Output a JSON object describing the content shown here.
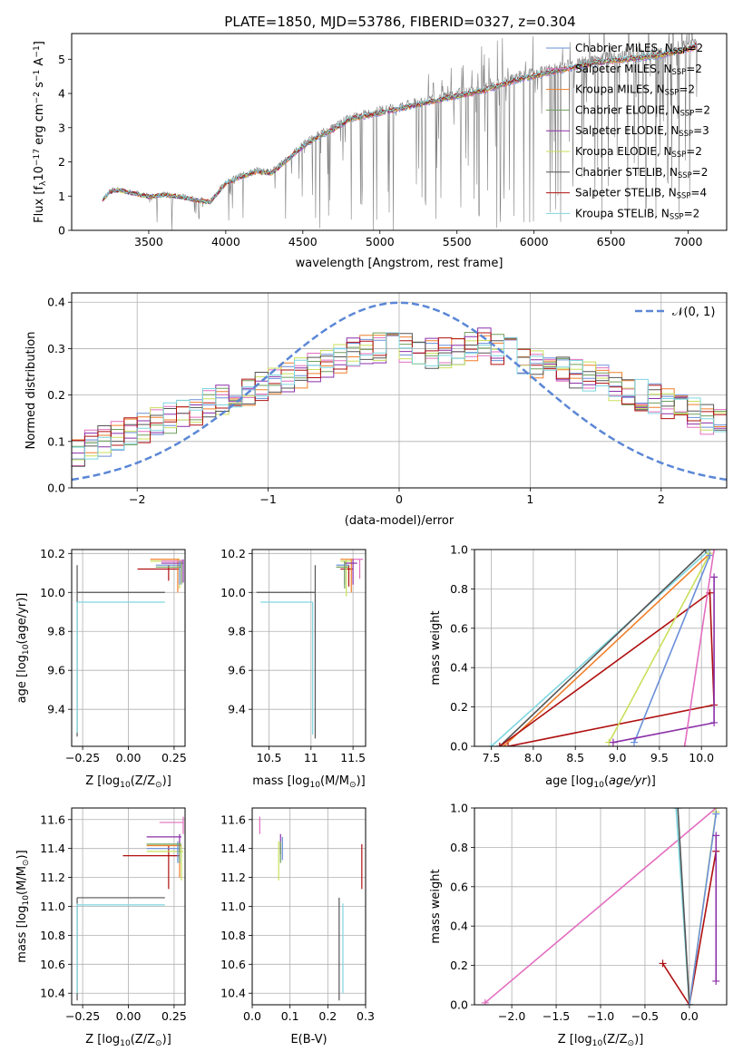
{
  "title": "PLATE=1850, MJD=53786, FIBERID=0327, z=0.304",
  "colors": {
    "chabrier_miles": "#6a8fd8",
    "salpeter_miles": "#e36ec0",
    "kroupa_miles": "#f07f2a",
    "chabrier_elodie": "#6f9f5a",
    "salpeter_elodie": "#8b2fa8",
    "kroupa_elodie": "#c8e05a",
    "chabrier_stelib": "#555555",
    "salpeter_stelib": "#b01010",
    "kroupa_stelib": "#7fd6e0",
    "data": "#808080",
    "gaussian": "#5b87d6",
    "grid": "#b0b0b0"
  },
  "chart_data": [
    {
      "type": "line",
      "panel": "spectrum",
      "title": "PLATE=1850, MJD=53786, FIBERID=0327, z=0.304",
      "xlabel": "wavelength [Angstrom, rest frame]",
      "ylabel": "Flux [f",
      "ylabel_sub": "λ",
      "ylabel_rest": "10",
      "ylabel_exp": "−17",
      "ylabel_unit": " erg cm",
      "ylabel_unit_exp1": "−2",
      "ylabel_s": " s",
      "ylabel_s_exp": "−1",
      "ylabel_A": " A",
      "ylabel_A_exp": "−1",
      "ylabel_close": "]",
      "xlim": [
        3000,
        7250
      ],
      "ylim": [
        0,
        5.75
      ],
      "xticks": [
        3500,
        4000,
        4500,
        5000,
        5500,
        6000,
        6500,
        7000
      ],
      "yticks": [
        0,
        1,
        2,
        3,
        4,
        5
      ],
      "grid": false,
      "legend_position": "top-right",
      "legend": [
        {
          "label": "Chabrier MILES, N",
          "sub": "SSP",
          "val": "=2"
        },
        {
          "label": "Salpeter MILES, N",
          "sub": "SSP",
          "val": "=2"
        },
        {
          "label": "Kroupa MILES, N",
          "sub": "SSP",
          "val": "=2"
        },
        {
          "label": "Chabrier ELODIE, N",
          "sub": "SSP",
          "val": "=2"
        },
        {
          "label": "Salpeter ELODIE, N",
          "sub": "SSP",
          "val": "=3"
        },
        {
          "label": "Kroupa ELODIE, N",
          "sub": "SSP",
          "val": "=2"
        },
        {
          "label": "Chabrier STELIB, N",
          "sub": "SSP",
          "val": "=2"
        },
        {
          "label": "Salpeter STELIB, N",
          "sub": "SSP",
          "val": "=4"
        },
        {
          "label": "Kroupa STELIB, N",
          "sub": "SSP",
          "val": "=2"
        }
      ],
      "continuum": [
        [
          3200,
          0.9
        ],
        [
          3250,
          1.15
        ],
        [
          3300,
          1.2
        ],
        [
          3400,
          1.1
        ],
        [
          3500,
          1.0
        ],
        [
          3600,
          1.05
        ],
        [
          3700,
          1.0
        ],
        [
          3800,
          0.9
        ],
        [
          3900,
          0.85
        ],
        [
          4000,
          1.4
        ],
        [
          4100,
          1.6
        ],
        [
          4200,
          1.75
        ],
        [
          4300,
          1.7
        ],
        [
          4400,
          2.1
        ],
        [
          4500,
          2.5
        ],
        [
          4600,
          2.8
        ],
        [
          4700,
          3.0
        ],
        [
          4800,
          3.3
        ],
        [
          4900,
          3.4
        ],
        [
          5000,
          3.5
        ],
        [
          5100,
          3.6
        ],
        [
          5200,
          3.7
        ],
        [
          5300,
          3.8
        ],
        [
          5400,
          3.9
        ],
        [
          5500,
          4.0
        ],
        [
          5600,
          4.1
        ],
        [
          5700,
          4.2
        ],
        [
          5800,
          4.35
        ],
        [
          5900,
          4.5
        ],
        [
          6000,
          4.6
        ],
        [
          6100,
          4.7
        ],
        [
          6200,
          4.8
        ],
        [
          6300,
          4.9
        ],
        [
          6400,
          5.0
        ],
        [
          6500,
          5.05
        ],
        [
          6600,
          5.1
        ],
        [
          6700,
          5.15
        ],
        [
          6800,
          5.2
        ],
        [
          6900,
          5.3
        ],
        [
          7000,
          5.4
        ],
        [
          7060,
          5.5
        ]
      ]
    },
    {
      "type": "area",
      "panel": "residuals",
      "xlabel": "(data-model)/error",
      "ylabel": "Normed distribution",
      "xlim": [
        -2.5,
        2.5
      ],
      "ylim": [
        0,
        0.42
      ],
      "xticks": [
        -2,
        -1,
        0,
        1,
        2
      ],
      "yticks": [
        0.0,
        0.1,
        0.2,
        0.3,
        0.4
      ],
      "grid": true,
      "legend_position": "top-right",
      "legend": [
        {
          "label": "𝒩(0, 1)"
        }
      ],
      "bin_width": 0.1,
      "base_series": [
        0.05,
        0.06,
        0.07,
        0.08,
        0.09,
        0.1,
        0.11,
        0.12,
        0.13,
        0.14,
        0.15,
        0.16,
        0.17,
        0.18,
        0.19,
        0.2,
        0.21,
        0.22,
        0.23,
        0.24,
        0.25,
        0.26,
        0.27,
        0.28,
        0.29,
        0.3,
        0.3,
        0.31,
        0.3,
        0.3,
        0.29,
        0.29,
        0.3,
        0.3,
        0.31,
        0.3,
        0.29,
        0.28,
        0.27,
        0.26,
        0.26,
        0.25,
        0.24,
        0.23,
        0.22,
        0.21,
        0.2,
        0.19,
        0.18,
        0.17,
        0.16,
        0.15,
        0.14,
        0.13,
        0.12,
        0.11,
        0.1,
        0.1,
        0.09,
        0.08
      ]
    },
    {
      "type": "scatter",
      "panel": "age_vs_Z",
      "xlabel": "Z [log",
      "xlabel_sub": "10",
      "xlabel_rest": "(Z/Z",
      "xlabel_sub2": "⊙",
      "xlabel_close": ")]",
      "ylabel": "age  [log",
      "ylabel_sub": "10",
      "ylabel_rest": "(age/yr)]",
      "xlim": [
        -0.31,
        0.31
      ],
      "ylim": [
        9.21,
        10.22
      ],
      "xticks": [
        -0.25,
        0.0,
        0.25
      ],
      "xticklabels": [
        "−0.25",
        "0.00",
        "0.25"
      ],
      "yticks": [
        9.4,
        9.6,
        9.8,
        10.0,
        10.2
      ],
      "grid": true
    },
    {
      "type": "scatter",
      "panel": "age_vs_mass",
      "xlabel": "mass [log",
      "xlabel_sub": "10",
      "xlabel_rest": "(M/M",
      "xlabel_sub2": "⊙",
      "xlabel_close": ")]",
      "xlim": [
        10.3,
        11.65
      ],
      "ylim": [
        9.21,
        10.22
      ],
      "xticks": [
        10.5,
        11.0,
        11.5
      ],
      "yticks": [
        9.4,
        9.6,
        9.8,
        10.0,
        10.2
      ],
      "grid": true
    },
    {
      "type": "line",
      "panel": "mass_weight_vs_age",
      "xlabel": "age  [log",
      "xlabel_sub": "10",
      "xlabel_rest": "(age/yr)]",
      "ylabel": "mass weight",
      "xlim": [
        7.3,
        10.3
      ],
      "ylim": [
        0,
        1
      ],
      "xticks": [
        7.5,
        8.0,
        8.5,
        9.0,
        9.5,
        10.0
      ],
      "yticks": [
        0.0,
        0.2,
        0.4,
        0.6,
        0.8,
        1.0
      ],
      "grid": true,
      "series": [
        {
          "key": "kroupa_stelib",
          "points": [
            [
              7.5,
              0.0
            ],
            [
              10.1,
              1.0
            ]
          ]
        },
        {
          "key": "chabrier_stelib",
          "points": [
            [
              7.6,
              0.0
            ],
            [
              10.05,
              1.0
            ]
          ]
        },
        {
          "key": "kroupa_miles",
          "points": [
            [
              7.65,
              0.0
            ],
            [
              10.1,
              0.98
            ]
          ]
        },
        {
          "key": "salpeter_stelib",
          "points": [
            [
              7.6,
              0.0
            ],
            [
              10.1,
              0.78
            ],
            [
              10.15,
              0.21
            ],
            [
              7.7,
              0.0
            ]
          ]
        },
        {
          "key": "kroupa_elodie",
          "points": [
            [
              8.9,
              0.02
            ],
            [
              10.1,
              0.98
            ]
          ]
        },
        {
          "key": "chabrier_miles",
          "points": [
            [
              9.2,
              0.02
            ],
            [
              10.1,
              0.97
            ]
          ]
        },
        {
          "key": "salpeter_elodie",
          "points": [
            [
              8.95,
              0.02
            ],
            [
              10.15,
              0.12
            ],
            [
              10.15,
              0.86
            ]
          ]
        },
        {
          "key": "salpeter_miles",
          "points": [
            [
              9.8,
              0.0
            ],
            [
              10.15,
              1.0
            ]
          ]
        }
      ]
    },
    {
      "type": "scatter",
      "panel": "mass_vs_Z",
      "xlabel": "Z [log",
      "xlabel_sub": "10",
      "xlabel_rest": "(Z/Z",
      "xlabel_sub2": "⊙",
      "xlabel_close": ")]",
      "ylabel": "mass [log",
      "ylabel_sub": "10",
      "ylabel_rest": "(M/M",
      "ylabel_sub2": "⊙",
      "ylabel_close": ")]",
      "xlim": [
        -0.31,
        0.31
      ],
      "ylim": [
        10.32,
        11.68
      ],
      "xticks": [
        -0.25,
        0.0,
        0.25
      ],
      "xticklabels": [
        "−0.25",
        "0.00",
        "0.25"
      ],
      "yticks": [
        10.4,
        10.6,
        10.8,
        11.0,
        11.2,
        11.4,
        11.6
      ],
      "grid": true
    },
    {
      "type": "scatter",
      "panel": "mass_vs_EBV",
      "xlabel": "E(B-V)",
      "xlim": [
        0.0,
        0.3
      ],
      "ylim": [
        10.32,
        11.68
      ],
      "xticks": [
        0.0,
        0.1,
        0.2,
        0.3
      ],
      "xticklabels": [
        "0.0",
        "0.1",
        "0.2",
        "0.3"
      ],
      "yticks": [
        10.4,
        10.6,
        10.8,
        11.0,
        11.2,
        11.4,
        11.6
      ],
      "grid": true
    },
    {
      "type": "line",
      "panel": "mass_weight_vs_Z",
      "xlabel": "Z [log",
      "xlabel_sub": "10",
      "xlabel_rest": "(Z/Z",
      "xlabel_sub2": "⊙",
      "xlabel_close": ")]",
      "ylabel": "mass weight",
      "xlim": [
        -2.42,
        0.42
      ],
      "ylim": [
        0,
        1
      ],
      "xticks": [
        -2.0,
        -1.5,
        -1.0,
        -0.5,
        0.0
      ],
      "xticklabels": [
        "−2.0",
        "−1.5",
        "−1.0",
        "−0.5",
        "0.0"
      ],
      "yticks": [
        0.0,
        0.2,
        0.4,
        0.6,
        0.8,
        1.0
      ],
      "grid": true,
      "series": [
        {
          "key": "salpeter_miles",
          "points": [
            [
              -2.3,
              0.01
            ],
            [
              0.3,
              1.0
            ]
          ]
        },
        {
          "key": "kroupa_stelib",
          "points": [
            [
              -0.15,
              1.0
            ],
            [
              0.0,
              0.0
            ]
          ]
        },
        {
          "key": "chabrier_stelib",
          "points": [
            [
              -0.13,
              1.0
            ],
            [
              0.0,
              0.0
            ]
          ]
        },
        {
          "key": "salpeter_stelib",
          "points": [
            [
              -0.3,
              0.21
            ],
            [
              0.0,
              0.0
            ],
            [
              0.3,
              0.78
            ]
          ]
        },
        {
          "key": "kroupa_elodie",
          "points": [
            [
              0.0,
              0.0
            ],
            [
              0.3,
              0.98
            ]
          ]
        },
        {
          "key": "chabrier_miles",
          "points": [
            [
              0.0,
              0.0
            ],
            [
              0.3,
              0.97
            ]
          ]
        },
        {
          "key": "salpeter_elodie",
          "points": [
            [
              0.3,
              0.12
            ],
            [
              0.3,
              0.86
            ]
          ]
        }
      ]
    }
  ]
}
